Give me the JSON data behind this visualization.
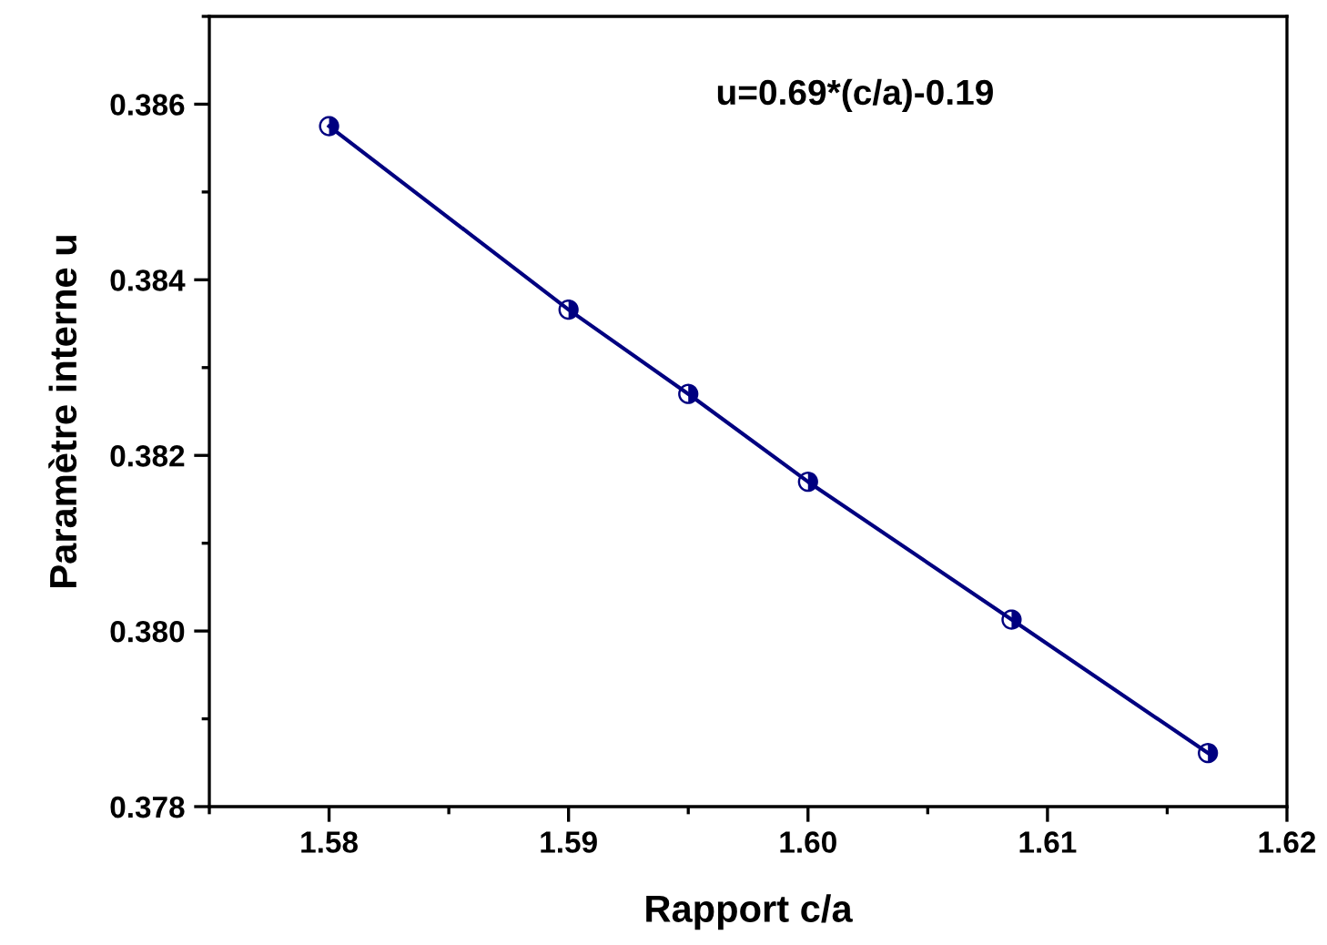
{
  "chart_data": {
    "type": "line",
    "xlabel": "Rapport c/a",
    "ylabel": "Paramètre interne u",
    "annotations": [
      "u=0.69*(c/a)-0.19"
    ],
    "x": [
      1.58,
      1.59,
      1.595,
      1.6,
      1.6085,
      1.6167
    ],
    "series": [
      {
        "color": "#000080",
        "values": [
          0.38575,
          0.38366,
          0.3827,
          0.3817,
          0.38013,
          0.37861
        ]
      }
    ],
    "xlim": [
      1.575,
      1.62
    ],
    "xticks": [
      {
        "value": 1.58,
        "label": "1.58"
      },
      {
        "value": 1.59,
        "label": "1.59"
      },
      {
        "value": 1.6,
        "label": "1.60"
      },
      {
        "value": 1.61,
        "label": "1.61"
      },
      {
        "value": 1.62,
        "label": "1.62"
      }
    ],
    "ylim": [
      0.378,
      0.387
    ],
    "yticks": [
      {
        "value": 0.378,
        "label": "0.378"
      },
      {
        "value": 0.38,
        "label": "0.380"
      },
      {
        "value": 0.382,
        "label": "0.382"
      },
      {
        "value": 0.384,
        "label": "0.384"
      },
      {
        "value": 0.386,
        "label": "0.386"
      }
    ],
    "marker": "circle",
    "line_style": "solid",
    "grid": false,
    "legend": false
  }
}
